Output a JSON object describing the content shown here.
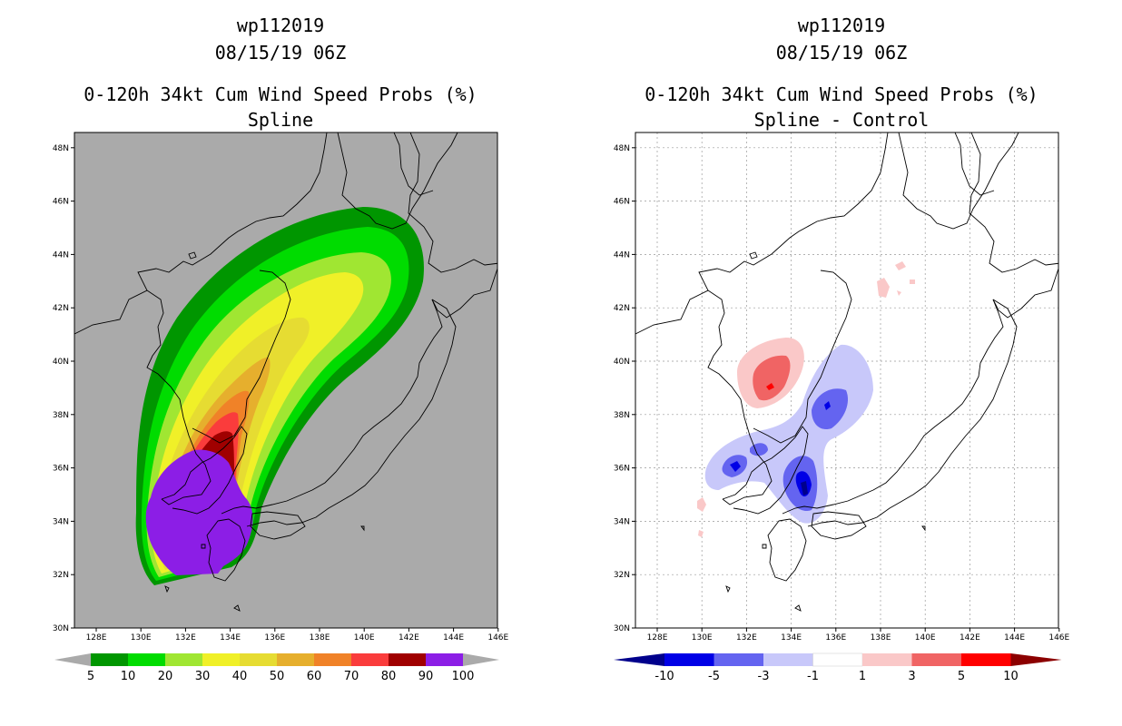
{
  "left_panel": {
    "storm_id": "wp112019",
    "datetime": "08/15/19 06Z",
    "product": "0-120h 34kt Cum Wind Speed Probs (%)",
    "method": "Spline",
    "lat_labels": [
      "30N",
      "32N",
      "34N",
      "36N",
      "38N",
      "40N",
      "42N",
      "44N",
      "46N",
      "48N"
    ],
    "lon_labels": [
      "128E",
      "130E",
      "132E",
      "134E",
      "136E",
      "138E",
      "140E",
      "142E",
      "144E",
      "146E"
    ],
    "colorbar": {
      "labels": [
        "5",
        "10",
        "20",
        "30",
        "40",
        "50",
        "60",
        "70",
        "80",
        "90",
        "100"
      ],
      "colors": [
        "#009600",
        "#00dc00",
        "#a0e632",
        "#f0f028",
        "#e6dc32",
        "#e6af2d",
        "#f08228",
        "#fa3c3c",
        "#a00000",
        "#8c1ee6"
      ]
    },
    "background_color": "#aaaaaa"
  },
  "right_panel": {
    "storm_id": "wp112019",
    "datetime": "08/15/19 06Z",
    "product": "0-120h 34kt Cum Wind Speed Probs (%)",
    "method": "Spline - Control",
    "lat_labels": [
      "30N",
      "32N",
      "34N",
      "36N",
      "38N",
      "40N",
      "42N",
      "44N",
      "46N",
      "48N"
    ],
    "lon_labels": [
      "128E",
      "130E",
      "132E",
      "134E",
      "136E",
      "138E",
      "140E",
      "142E",
      "144E",
      "146E"
    ],
    "colorbar": {
      "labels": [
        "-10",
        "-5",
        "-3",
        "-1",
        "1",
        "3",
        "5",
        "10"
      ],
      "colors": [
        "#00008c",
        "#0000e6",
        "#6464f0",
        "#c8c8fa",
        "#ffffff",
        "#fac8c8",
        "#f06464",
        "#ff0000",
        "#8c0000"
      ]
    },
    "background_color": "#ffffff"
  }
}
